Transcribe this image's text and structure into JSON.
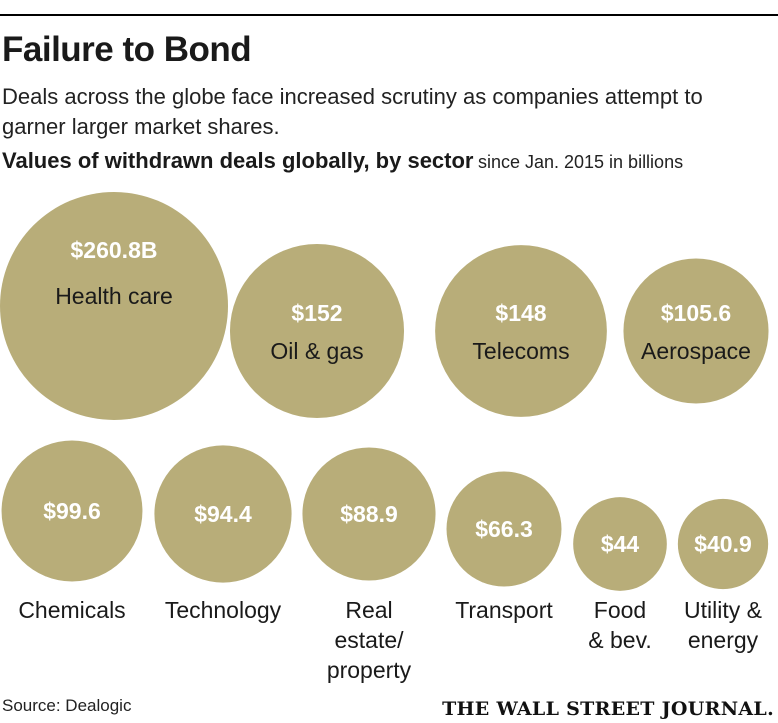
{
  "title": "Failure to Bond",
  "subtitle": "Deals across the globe face increased scrutiny as companies attempt to garner larger market shares.",
  "chart_heading": "Values of withdrawn deals globally, by sector",
  "chart_unit": "since Jan. 2015 in billions",
  "source": "Source: Dealogic",
  "publisher": "THE WALL STREET JOURNAL.",
  "colors": {
    "bubble": "#b8ad79",
    "value_text": "#ffffff",
    "label_text": "#1a1a1a"
  },
  "chart_data": {
    "type": "bubble",
    "title": "Values of withdrawn deals globally, by sector",
    "unit": "billions of dollars, since Jan. 2015",
    "categories": [
      "Health care",
      "Oil & gas",
      "Telecoms",
      "Aerospace",
      "Chemicals",
      "Technology",
      "Real estate/ property",
      "Transport",
      "Food & bev.",
      "Utility & energy"
    ],
    "values": [
      260.8,
      152,
      148,
      105.6,
      99.6,
      94.4,
      88.9,
      66.3,
      44,
      40.9
    ],
    "value_labels": [
      "$260.8B",
      "$152",
      "$148",
      "$105.6",
      "$99.6",
      "$94.4",
      "$88.9",
      "$66.3",
      "$44",
      "$40.9"
    ],
    "label_lines": [
      [
        "Health care"
      ],
      [
        "Oil & gas"
      ],
      [
        "Telecoms"
      ],
      [
        "Aerospace"
      ],
      [
        "Chemicals"
      ],
      [
        "Technology"
      ],
      [
        "Real",
        "estate/",
        "property"
      ],
      [
        "Transport"
      ],
      [
        "Food",
        "& bev."
      ],
      [
        "Utility &",
        "energy"
      ]
    ]
  }
}
